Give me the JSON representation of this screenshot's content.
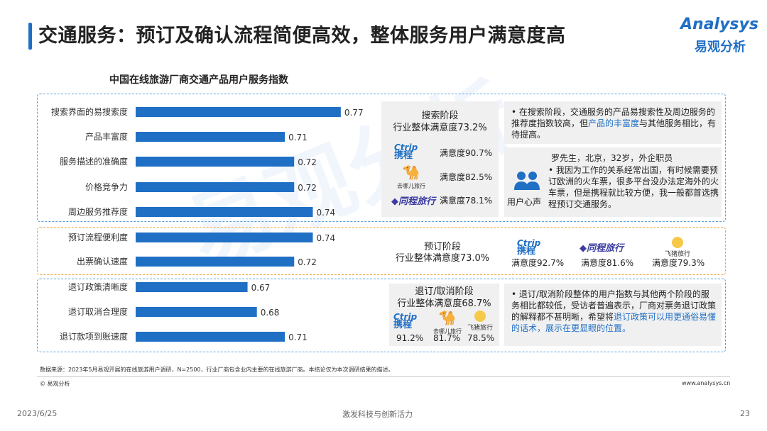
{
  "header": {
    "title": "交通服务：预订及确认流程简便高效，整体服务用户满意度高",
    "logo_en": "Analysys",
    "logo_cn": "易观分析"
  },
  "chart_data": {
    "type": "bar",
    "orientation": "horizontal",
    "title": "中国在线旅游厂商交通产品用户服务指数",
    "categories": [
      "搜索界面的易搜索度",
      "产品丰富度",
      "服务描述的准确度",
      "价格竞争力",
      "周边服务推荐度",
      "预订流程便利度",
      "出票确认速度",
      "退订政策清晰度",
      "退订取消合理度",
      "退订款项到账速度"
    ],
    "values": [
      0.77,
      0.71,
      0.72,
      0.72,
      0.74,
      0.74,
      0.72,
      0.67,
      0.68,
      0.71
    ],
    "value_labels": [
      "0.77",
      "0.71",
      "0.72",
      "0.72",
      "0.74",
      "0.74",
      "0.72",
      "0.67",
      "0.68",
      "0.71"
    ],
    "groups": [
      "搜索阶段",
      "预订阶段",
      "退订/取消阶段"
    ],
    "xlim": [
      0.55,
      0.78
    ],
    "bar_color": "#1f6fc5",
    "grid": false
  },
  "stages": {
    "search": {
      "name": "搜索阶段",
      "overall": "行业整体满意度73.2%",
      "items": [
        {
          "brand_icon": "ctrip-logo",
          "value": "满意度90.7%"
        },
        {
          "brand_icon": "qunar-logo",
          "value": "满意度82.5%"
        },
        {
          "brand_icon": "tongcheng-logo",
          "value": "满意度78.1%"
        }
      ],
      "insight_pre": "• 在搜索阶段，交通服务的产品易搜索性及周边服务的推荐度指数较高，但",
      "insight_hl": "产品的丰富度",
      "insight_post": "与其他服务相比，有待提高。",
      "voice_label": "用户心声",
      "persona": "罗先生，北京，32岁，外企职员",
      "quote": "• 我因为工作的关系经常出国，有时候需要预订欧洲的火车票，很多平台没办法定海外的火车票，但是携程就比较方便，我一般都首选携程预订交通服务。"
    },
    "booking": {
      "name": "预订阶段",
      "overall": "行业整体满意度73.0%",
      "items": [
        {
          "brand_icon": "ctrip-logo",
          "value": "满意度92.7%"
        },
        {
          "brand_icon": "tongcheng-logo",
          "value": "满意度81.6%"
        },
        {
          "brand_icon": "fliggy-logo",
          "value": "满意度79.3%"
        }
      ]
    },
    "refund": {
      "name": "退订/取消阶段",
      "overall": "行业整体满意度68.7%",
      "items": [
        {
          "brand_icon": "ctrip-logo",
          "value": "91.2%"
        },
        {
          "brand_icon": "qunar-logo",
          "value": "81.7%"
        },
        {
          "brand_icon": "fliggy-logo",
          "value": "78.5%"
        }
      ],
      "insight_pre": "• 退订/取消阶段整体的用户指数与其他两个阶段的服务相比都较低，受访者普遍表示，厂商对票务退订政策的解释都不甚明晰，希望将",
      "insight_hl": "退订政策可以用更通俗易懂的话术，展示在更显眼的位置。",
      "insight_post": ""
    }
  },
  "brands": {
    "ctrip_en": "Ctrip",
    "ctrip_cn": "携程",
    "qunar_cn": "去哪儿旅行",
    "tongcheng_cn": "同程旅行",
    "fliggy_cn": "飞猪旅行"
  },
  "footer": {
    "source": "数据来源：2023年5月易观开展的在线旅游用户调研，N=2500，行业厂商包含业内主要的在线旅游厂商。本结论仅为本次调研结果的描述。",
    "copyright": "© 易观分析",
    "site": "www.analysys.cn",
    "date": "2023/6/25",
    "slogan": "激发科技与创新活力",
    "page": "23"
  }
}
